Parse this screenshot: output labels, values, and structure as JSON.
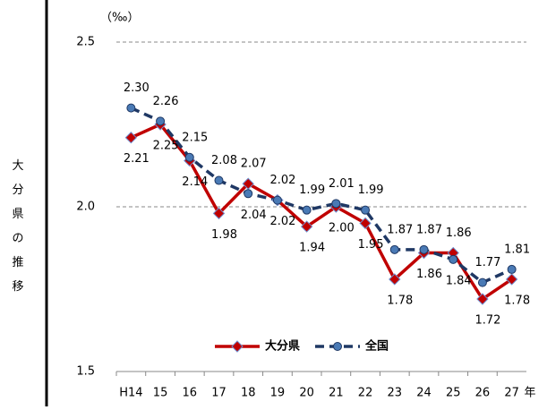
{
  "chart_data": {
    "type": "line",
    "y_label": "大分県の推移",
    "unit_label": "（‰）",
    "x_suffix": "年",
    "categories": [
      "H14",
      "15",
      "16",
      "17",
      "18",
      "19",
      "20",
      "21",
      "22",
      "23",
      "24",
      "25",
      "26",
      "27"
    ],
    "series": [
      {
        "name": "大分県",
        "color": "#c00000",
        "marker": "diamond",
        "values": [
          2.21,
          2.25,
          2.14,
          1.98,
          2.07,
          2.02,
          1.94,
          2.0,
          1.95,
          1.78,
          1.86,
          1.86,
          1.72,
          1.78
        ],
        "value_labels": [
          "2.21",
          "2.25",
          "2.14",
          "1.98",
          "2.07",
          "2.02",
          "1.94",
          "2.00",
          "1.95",
          "1.78",
          "1.86",
          "1.86",
          "1.72",
          "1.78"
        ]
      },
      {
        "name": "全国",
        "color": "#1f3864",
        "marker": "circle",
        "dashed": true,
        "values": [
          2.3,
          2.26,
          2.15,
          2.08,
          2.04,
          2.02,
          1.99,
          2.01,
          1.99,
          1.87,
          1.87,
          1.84,
          1.77,
          1.81
        ],
        "value_labels": [
          "2.30",
          "2.26",
          "2.15",
          "2.08",
          "2.04",
          "2.02",
          "1.99",
          "2.01",
          "1.99",
          "1.87",
          "1.87",
          "1.84",
          "1.77",
          "1.81"
        ]
      }
    ],
    "ylim": [
      1.5,
      2.5
    ],
    "yticks": [
      1.5,
      {
        "value": 2,
        "label": "2.0"
      },
      2.5
    ],
    "grid": true,
    "legend": "bottom"
  }
}
